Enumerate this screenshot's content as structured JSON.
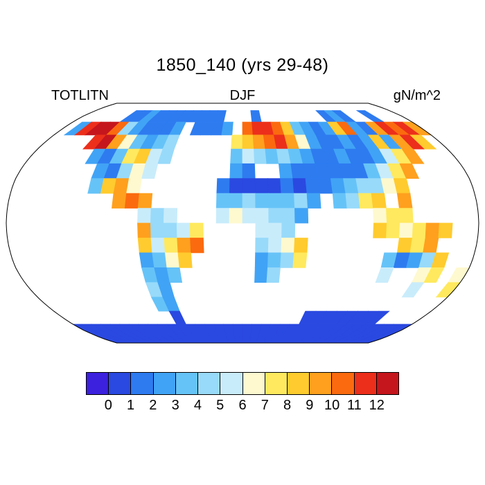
{
  "chart_data": {
    "type": "heatmap",
    "title": "1850_140 (yrs 29-48)",
    "variable": "TOTLITN",
    "season": "DJF",
    "units": "gN/m^2",
    "projection": "robinson",
    "ocean_color": "#ffffff",
    "outline_color": "#000000",
    "colorbar": {
      "orientation": "horizontal",
      "tick_labels": [
        "0",
        "1",
        "2",
        "3",
        "4",
        "5",
        "6",
        "7",
        "8",
        "9",
        "10",
        "11",
        "12"
      ],
      "colors": [
        "#3C21DE",
        "#2A49E0",
        "#2E7BF0",
        "#41A3F5",
        "#66C3F8",
        "#98DAFA",
        "#C9ECFB",
        "#FEF9CF",
        "#FFE95E",
        "#FFCB2E",
        "#FFA01E",
        "#FB6A0F",
        "#EC2F1B",
        "#C5161D"
      ],
      "bins_note": "14 bins: below 0, 0-1 ... 11-12, above 12"
    },
    "grid": {
      "description": "Approximate 10-degree reconstruction of the plotted field, read from the figure. Rows run 90N to 90S, columns 180W to 180E.",
      "lon_min": -180,
      "lon_step": 10,
      "lat_max": 90,
      "lat_step": 10,
      "ocean_char": ".",
      "value_chars": "0-9, a=10, b=11, c=12; a cell value v falls in colorbar bin v..v+1",
      "rows": [
        "....................................",
        ".....11211111111...1.......121..1...",
        ".2bcca421112.1112.abba832128a219bab9",
        "....bc963234.....789ab96211212829b8.",
        ".....2137854.....3543432112112579...",
        "......21465......21..21111113579....",
        "......3896......100001011234468.....",
        "........9a9.....33433342.3478.9.....",
        "..........545...5655442.....677.....",
        "..........94457....554......876798..",
        "..........8579a....4568.......879...",
        "..........2368.....2347......31248..",
        "..........323......24........5..67.6",
        "..........42....................5..7",
        "..........32........................",
        "...........0............00000000....",
        "000000000000000000000000000000000000",
        "000000000000000000000000000000000000"
      ]
    }
  }
}
